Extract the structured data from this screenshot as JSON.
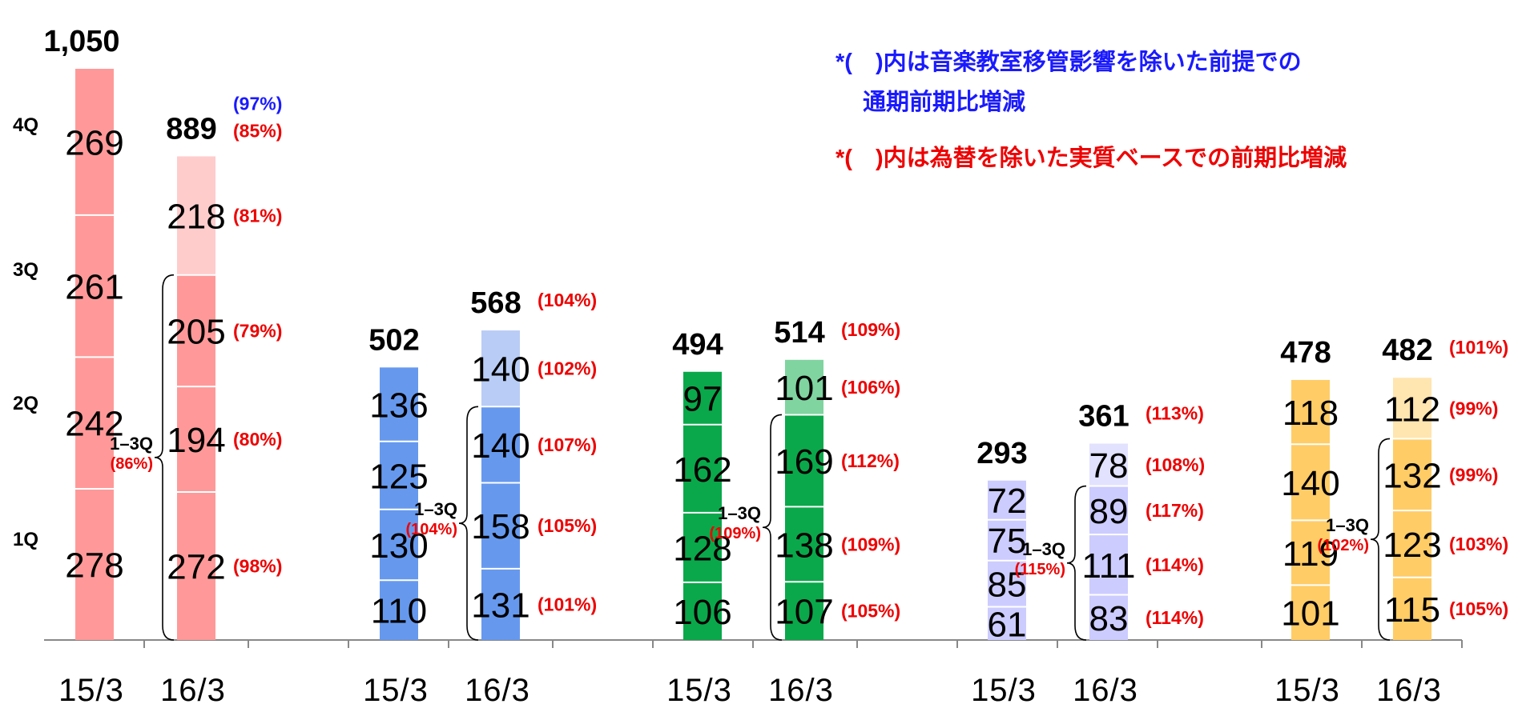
{
  "notes": [
    {
      "line1": "*(　)内は音楽教室移管影響を除いた前提での",
      "line2": "通期前期比増減",
      "color": "#1a1aff"
    },
    {
      "line1": "*(　)内は為替を除いた実質ベースでの前期比増減",
      "line2": "",
      "color": "#ee0000"
    }
  ],
  "chart_data": {
    "type": "bar",
    "stacked": true,
    "categories": [
      "15/3",
      "16/3",
      "15/3",
      "16/3",
      "15/3",
      "16/3",
      "15/3",
      "16/3",
      "15/3",
      "16/3"
    ],
    "quarter_axis_labels": [
      "1Q",
      "2Q",
      "3Q",
      "4Q"
    ],
    "groups": [
      {
        "colors": {
          "base": "#ff9999",
          "light": "#ffcccc"
        },
        "bars": [
          {
            "category": "15/3",
            "total": "1,050",
            "values": [
              278,
              242,
              261,
              269
            ],
            "pct": [
              "",
              "",
              "",
              ""
            ],
            "total_pct": []
          },
          {
            "category": "16/3",
            "total": "889",
            "values": [
              272,
              194,
              205,
              218
            ],
            "pct": [
              "(98%)",
              "(80%)",
              "(79%)",
              "(81%)"
            ],
            "total_pct": [
              {
                "text": "(97%)",
                "color": "#1a1aff"
              },
              {
                "text": "(85%)",
                "color": "#ee0000"
              }
            ]
          }
        ],
        "q13": {
          "label": "1–3Q",
          "pct": "(86%)"
        }
      },
      {
        "colors": {
          "base": "#6699ee",
          "light": "#b8ccf5"
        },
        "bars": [
          {
            "category": "15/3",
            "total": "502",
            "values": [
              110,
              130,
              125,
              136
            ],
            "pct": [
              "",
              "",
              "",
              ""
            ],
            "total_pct": []
          },
          {
            "category": "16/3",
            "total": "568",
            "values": [
              131,
              158,
              140,
              140
            ],
            "pct": [
              "(101%)",
              "(105%)",
              "(107%)",
              "(102%)"
            ],
            "total_pct": [
              {
                "text": "(104%)",
                "color": "#ee0000"
              }
            ]
          }
        ],
        "q13": {
          "label": "1–3Q",
          "pct": "(104%)"
        }
      },
      {
        "colors": {
          "base": "#0aa84a",
          "light": "#80d4a0"
        },
        "bars": [
          {
            "category": "15/3",
            "total": "494",
            "values": [
              106,
              128,
              162,
              97
            ],
            "pct": [
              "",
              "",
              "",
              ""
            ],
            "total_pct": []
          },
          {
            "category": "16/3",
            "total": "514",
            "values": [
              107,
              138,
              169,
              101
            ],
            "pct": [
              "(105%)",
              "(109%)",
              "(112%)",
              "(106%)"
            ],
            "total_pct": [
              {
                "text": "(109%)",
                "color": "#ee0000"
              }
            ]
          }
        ],
        "q13": {
          "label": "1–3Q",
          "pct": "(109%)"
        }
      },
      {
        "colors": {
          "base": "#ccccff",
          "light": "#e2e2ff"
        },
        "bars": [
          {
            "category": "15/3",
            "total": "293",
            "values": [
              61,
              85,
              75,
              72
            ],
            "pct": [
              "",
              "",
              "",
              ""
            ],
            "total_pct": []
          },
          {
            "category": "16/3",
            "total": "361",
            "values": [
              83,
              111,
              89,
              78
            ],
            "pct": [
              "(114%)",
              "(114%)",
              "(117%)",
              "(108%)"
            ],
            "total_pct": [
              {
                "text": "(113%)",
                "color": "#ee0000"
              }
            ]
          }
        ],
        "q13": {
          "label": "1–3Q",
          "pct": "(115%)"
        }
      },
      {
        "colors": {
          "base": "#ffcc66",
          "light": "#ffe5b0"
        },
        "bars": [
          {
            "category": "15/3",
            "total": "478",
            "values": [
              101,
              119,
              140,
              118
            ],
            "pct": [
              "",
              "",
              "",
              ""
            ],
            "total_pct": []
          },
          {
            "category": "16/3",
            "total": "482",
            "values": [
              115,
              123,
              132,
              112
            ],
            "pct": [
              "(105%)",
              "(103%)",
              "(99%)",
              "(99%)"
            ],
            "total_pct": [
              {
                "text": "(101%)",
                "color": "#ee0000"
              }
            ]
          }
        ],
        "q13": {
          "label": "1–3Q",
          "pct": "(102%)"
        }
      }
    ]
  }
}
